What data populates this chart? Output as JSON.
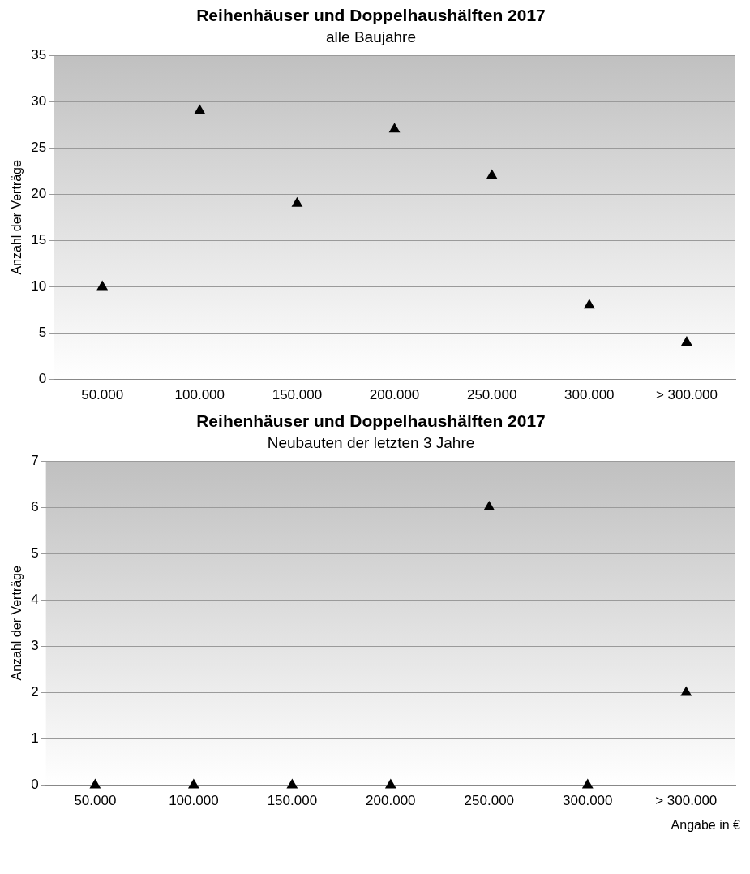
{
  "chart_data": [
    {
      "type": "scatter",
      "title": "Reihenhäuser und Doppelhaushälften 2017",
      "subtitle": "alle Baujahre",
      "ylabel": "Anzahl der Verträge",
      "categories": [
        "50.000",
        "100.000",
        "150.000",
        "200.000",
        "250.000",
        "300.000",
        "> 300.000"
      ],
      "series": [
        {
          "color": "#000000",
          "values": [
            10,
            29,
            19,
            27,
            22,
            8,
            4
          ]
        }
      ],
      "ylim": [
        0,
        35
      ],
      "yticks": [
        0,
        5,
        10,
        15,
        20,
        25,
        30,
        35
      ],
      "grid": "y",
      "marker": "triangle",
      "legend": false
    },
    {
      "type": "scatter",
      "title": "Reihenhäuser und Doppelhaushälften 2017",
      "subtitle": "Neubauten der letzten 3 Jahre",
      "ylabel": "Anzahl der Verträge",
      "categories": [
        "50.000",
        "100.000",
        "150.000",
        "200.000",
        "250.000",
        "300.000",
        "> 300.000"
      ],
      "series": [
        {
          "color": "#000000",
          "values": [
            0,
            0,
            0,
            0,
            6,
            0,
            2
          ]
        }
      ],
      "ylim": [
        0,
        7
      ],
      "yticks": [
        0,
        1,
        2,
        3,
        4,
        5,
        6,
        7
      ],
      "grid": "y",
      "marker": "triangle",
      "legend": false,
      "annotations": [
        "Angabe in €"
      ]
    }
  ]
}
